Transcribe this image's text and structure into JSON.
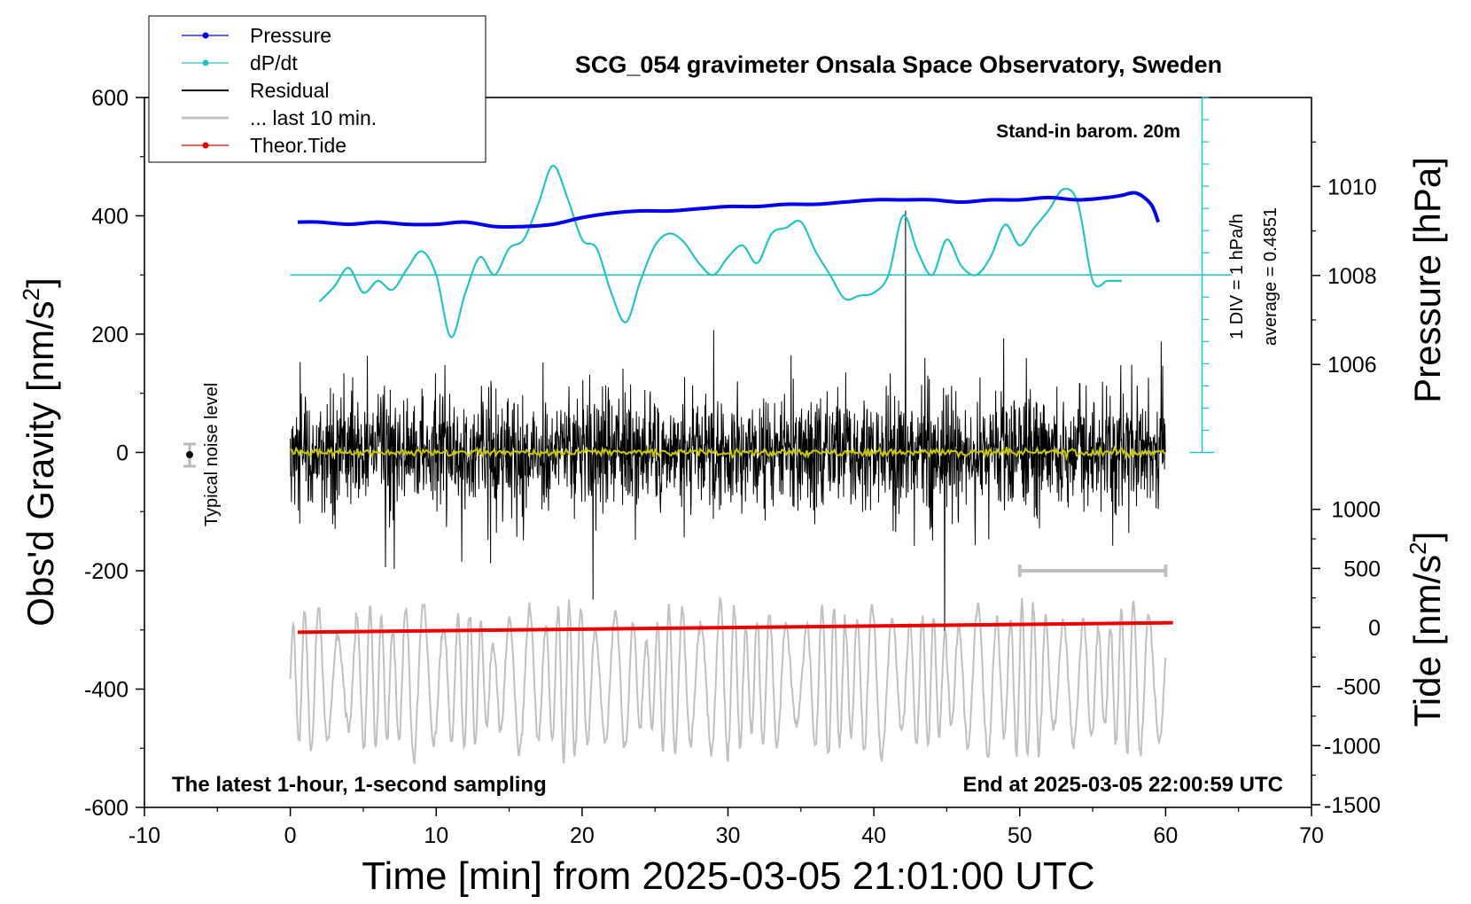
{
  "chart_data": {
    "type": "line",
    "title": "SCG_054 gravimeter Onsala Space Observatory, Sweden",
    "xlabel": "Time [min] from 2025-03-05 21:01:00 UTC",
    "ylabel_main": "Obs'd Gravity [nm/s",
    "ylabel_pressure": "Pressure [hPa]",
    "ylabel_tide": "Tide [nm/s",
    "superscript": "2",
    "xlim": [
      -10,
      70
    ],
    "ylim": [
      -600,
      600
    ],
    "pressure_lim": [
      1004,
      1012
    ],
    "tide_lim": [
      -1500,
      1500
    ],
    "x_ticks": [
      "-10",
      "0",
      "10",
      "20",
      "30",
      "40",
      "50",
      "60",
      "70"
    ],
    "y_ticks": [
      "600",
      "400",
      "200",
      "0",
      "-200",
      "-400",
      "-600"
    ],
    "pressure_ticks": [
      "1010",
      "1008",
      "1006"
    ],
    "tide_ticks": [
      "1000",
      "500",
      "0",
      "-500",
      "-1000",
      "-1500"
    ],
    "annotations": {
      "barometer": "Stand-in barom. 20m",
      "scale": "1 DIV = 1 hPa/h",
      "average": "average = 0.4851",
      "noise": "Typical noise level",
      "sampling": "The latest 1-hour, 1-second sampling",
      "end": "End at 2025-03-05 22:00:59 UTC"
    },
    "legend": [
      "Pressure",
      "dP/dt",
      "Residual",
      "... last 10 min.",
      "Theor.Tide"
    ],
    "colors": {
      "pressure": "#0000ee",
      "dpdt": "#22c4c4",
      "residual": "#000000",
      "last10": "#c0c0c0",
      "tide": "#ee0000",
      "smooth": "#c8c800"
    },
    "series": [
      {
        "name": "Pressure",
        "unit": "hPa",
        "x": [
          0.5,
          2,
          4,
          6,
          8,
          10,
          12,
          14,
          16,
          18,
          20,
          22,
          24,
          26,
          28,
          30,
          32,
          34,
          36,
          38,
          40,
          42,
          44,
          46,
          48,
          50,
          52,
          54,
          56,
          57,
          58,
          59,
          59.5
        ],
        "values": [
          1009.2,
          1009.2,
          1009.15,
          1009.2,
          1009.15,
          1009.15,
          1009.2,
          1009.1,
          1009.1,
          1009.15,
          1009.3,
          1009.4,
          1009.45,
          1009.45,
          1009.5,
          1009.55,
          1009.55,
          1009.6,
          1009.6,
          1009.65,
          1009.7,
          1009.7,
          1009.7,
          1009.65,
          1009.7,
          1009.7,
          1009.75,
          1009.7,
          1009.75,
          1009.8,
          1009.85,
          1009.6,
          1009.2
        ]
      },
      {
        "name": "dP/dt",
        "unit": "gravity-axis units",
        "x": [
          2,
          3,
          4,
          5,
          6,
          7,
          8,
          9,
          10,
          11,
          12,
          13,
          14,
          15,
          16,
          17,
          18,
          19,
          20,
          21,
          22,
          23,
          24,
          25,
          26,
          27,
          28,
          29,
          30,
          31,
          32,
          33,
          34,
          35,
          36,
          37,
          38,
          39,
          40,
          41,
          42,
          43,
          44,
          45,
          46,
          47,
          48,
          49,
          50,
          51,
          52,
          53,
          54,
          55,
          56,
          56.5,
          57
        ],
        "values": [
          255,
          280,
          312,
          270,
          290,
          275,
          310,
          340,
          300,
          195,
          270,
          330,
          300,
          345,
          360,
          420,
          485,
          430,
          360,
          345,
          270,
          220,
          290,
          350,
          370,
          355,
          320,
          300,
          330,
          350,
          320,
          370,
          380,
          390,
          340,
          300,
          260,
          265,
          270,
          300,
          400,
          340,
          300,
          360,
          315,
          300,
          330,
          385,
          350,
          380,
          410,
          445,
          420,
          290,
          290,
          290,
          290
        ]
      },
      {
        "name": "Theor.Tide",
        "unit": "nm/s2",
        "x": [
          0.5,
          60.5
        ],
        "values": [
          -40,
          40
        ]
      }
    ],
    "dpdt_baseline": 300,
    "noise_level": {
      "x": -7,
      "value": 0,
      "error": 20
    },
    "last10_range": [
      50,
      60
    ]
  }
}
